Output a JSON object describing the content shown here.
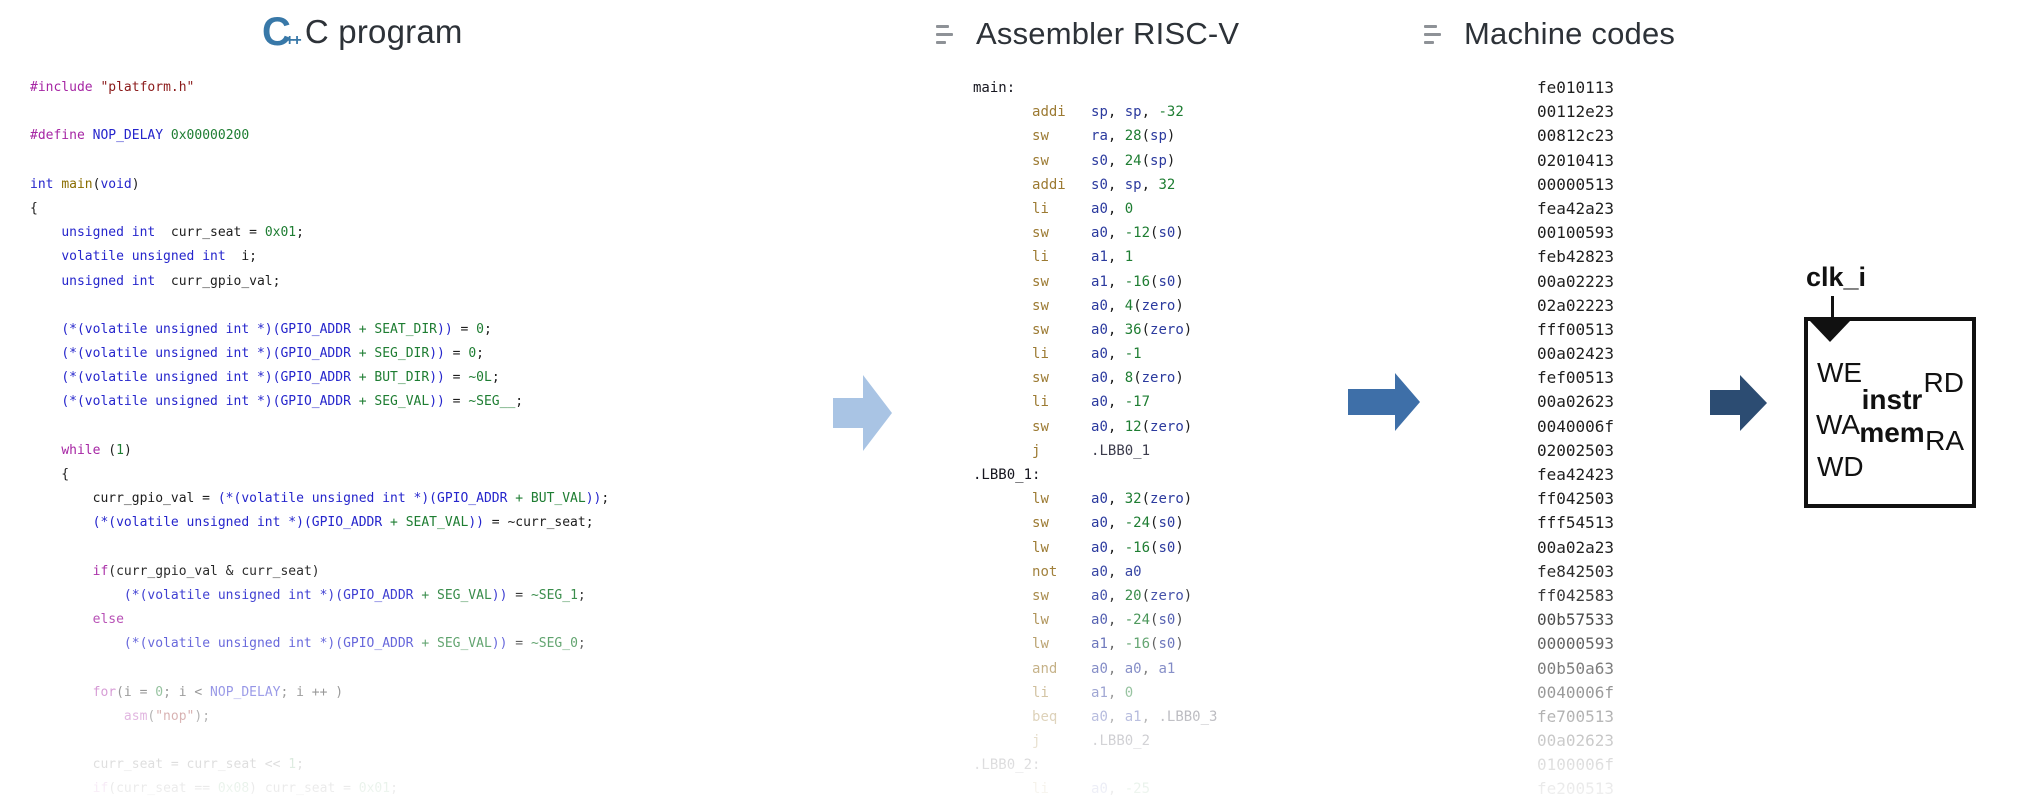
{
  "headers": {
    "c": {
      "title": "C program",
      "icon": "c-plus-plus-icon"
    },
    "asm": {
      "title": "Assembler RISC-V",
      "icon": "list-icon"
    },
    "mc": {
      "title": "Machine codes",
      "icon": "list-icon"
    }
  },
  "cpp_icon_text": {
    "letter": "C",
    "pluses": "++"
  },
  "c_code": {
    "lines": [
      [
        [
          "p",
          "#include "
        ],
        [
          "s",
          "\"platform.h\""
        ]
      ],
      [],
      [
        [
          "p",
          "#define "
        ],
        [
          "k",
          "NOP_DELAY"
        ],
        [
          "d",
          " "
        ],
        [
          "n",
          "0x00000200"
        ]
      ],
      [],
      [
        [
          "k",
          "int "
        ],
        [
          "f",
          "main"
        ],
        [
          "d",
          "("
        ],
        [
          "k",
          "void"
        ],
        [
          "d",
          ")"
        ]
      ],
      [
        [
          "d",
          "{"
        ]
      ],
      [
        [
          "d",
          "    "
        ],
        [
          "k",
          "unsigned int"
        ],
        [
          "d",
          "  curr_seat = "
        ],
        [
          "n",
          "0x01"
        ],
        [
          "d",
          ";"
        ]
      ],
      [
        [
          "d",
          "    "
        ],
        [
          "k",
          "volatile unsigned int"
        ],
        [
          "d",
          "  i;"
        ]
      ],
      [
        [
          "d",
          "    "
        ],
        [
          "k",
          "unsigned int"
        ],
        [
          "d",
          "  curr_gpio_val;"
        ]
      ],
      [],
      [
        [
          "d",
          "    "
        ],
        [
          "k",
          "(*(volatile unsigned int *)(GPIO_ADDR"
        ],
        [
          "n",
          " + SEAT_DIR"
        ],
        [
          "k",
          "))"
        ],
        [
          "d",
          " = "
        ],
        [
          "n",
          "0"
        ],
        [
          "d",
          ";"
        ]
      ],
      [
        [
          "d",
          "    "
        ],
        [
          "k",
          "(*(volatile unsigned int *)(GPIO_ADDR"
        ],
        [
          "n",
          " + SEG_DIR"
        ],
        [
          "k",
          "))"
        ],
        [
          "d",
          " = "
        ],
        [
          "n",
          "0"
        ],
        [
          "d",
          ";"
        ]
      ],
      [
        [
          "d",
          "    "
        ],
        [
          "k",
          "(*(volatile unsigned int *)(GPIO_ADDR"
        ],
        [
          "n",
          " + BUT_DIR"
        ],
        [
          "k",
          "))"
        ],
        [
          "d",
          " = "
        ],
        [
          "n",
          "~0L"
        ],
        [
          "d",
          ";"
        ]
      ],
      [
        [
          "d",
          "    "
        ],
        [
          "k",
          "(*(volatile unsigned int *)(GPIO_ADDR"
        ],
        [
          "n",
          " + SEG_VAL"
        ],
        [
          "k",
          "))"
        ],
        [
          "d",
          " = "
        ],
        [
          "n",
          "~SEG__"
        ],
        [
          "d",
          ";"
        ]
      ],
      [],
      [
        [
          "d",
          "    "
        ],
        [
          "p",
          "while"
        ],
        [
          "d",
          " ("
        ],
        [
          "n",
          "1"
        ],
        [
          "d",
          ")"
        ]
      ],
      [
        [
          "d",
          "    {"
        ]
      ],
      [
        [
          "d",
          "        curr_gpio_val = "
        ],
        [
          "k",
          "(*(volatile unsigned int *)(GPIO_ADDR"
        ],
        [
          "n",
          " + BUT_VAL"
        ],
        [
          "k",
          "))"
        ],
        [
          "d",
          ";"
        ]
      ],
      [
        [
          "d",
          "        "
        ],
        [
          "k",
          "(*(volatile unsigned int *)(GPIO_ADDR"
        ],
        [
          "n",
          " + SEAT_VAL"
        ],
        [
          "k",
          "))"
        ],
        [
          "d",
          " = ~curr_seat;"
        ]
      ],
      [],
      [
        [
          "d",
          "        "
        ],
        [
          "p",
          "if"
        ],
        [
          "d",
          "(curr_gpio_val & curr_seat)"
        ]
      ],
      [
        [
          "d",
          "            "
        ],
        [
          "k",
          "(*(volatile unsigned int *)(GPIO_ADDR"
        ],
        [
          "n",
          " + SEG_VAL"
        ],
        [
          "k",
          "))"
        ],
        [
          "d",
          " = "
        ],
        [
          "n",
          "~SEG_1"
        ],
        [
          "d",
          ";"
        ]
      ],
      [
        [
          "d",
          "        "
        ],
        [
          "p",
          "else"
        ]
      ],
      [
        [
          "d",
          "            "
        ],
        [
          "k",
          "(*(volatile unsigned int *)(GPIO_ADDR"
        ],
        [
          "n",
          " + SEG_VAL"
        ],
        [
          "k",
          "))"
        ],
        [
          "d",
          " = "
        ],
        [
          "n",
          "~SEG_0"
        ],
        [
          "d",
          ";"
        ]
      ],
      [],
      [
        [
          "d",
          "        "
        ],
        [
          "p",
          "for"
        ],
        [
          "d",
          "(i = "
        ],
        [
          "n",
          "0"
        ],
        [
          "d",
          "; i < "
        ],
        [
          "k",
          "NOP_DELAY"
        ],
        [
          "d",
          "; i ++ )"
        ]
      ],
      [
        [
          "d",
          "            "
        ],
        [
          "p",
          "asm"
        ],
        [
          "d",
          "("
        ],
        [
          "s",
          "\"nop\""
        ],
        [
          "d",
          ");"
        ]
      ],
      [],
      [
        [
          "d",
          "        curr_seat = curr_seat << "
        ],
        [
          "n",
          "1"
        ],
        [
          "d",
          ";"
        ]
      ],
      [
        [
          "d",
          "        "
        ],
        [
          "p",
          "if"
        ],
        [
          "d",
          "(curr_seat == "
        ],
        [
          "n",
          "0x08"
        ],
        [
          "d",
          ") curr_seat = "
        ],
        [
          "n",
          "0x01"
        ],
        [
          "d",
          ";"
        ]
      ]
    ]
  },
  "asm_code": {
    "lines": [
      [
        [
          "l",
          "main:"
        ]
      ],
      [
        [
          "d",
          "       "
        ],
        [
          "o",
          "addi"
        ],
        [
          "d",
          "   "
        ],
        [
          "r",
          "sp"
        ],
        [
          "d",
          ", "
        ],
        [
          "r",
          "sp"
        ],
        [
          "d",
          ", "
        ],
        [
          "n",
          "-32"
        ]
      ],
      [
        [
          "d",
          "       "
        ],
        [
          "o",
          "sw"
        ],
        [
          "d",
          "     "
        ],
        [
          "r",
          "ra"
        ],
        [
          "d",
          ", "
        ],
        [
          "n",
          "28"
        ],
        [
          "d",
          "("
        ],
        [
          "r",
          "sp"
        ],
        [
          "d",
          ")"
        ]
      ],
      [
        [
          "d",
          "       "
        ],
        [
          "o",
          "sw"
        ],
        [
          "d",
          "     "
        ],
        [
          "r",
          "s0"
        ],
        [
          "d",
          ", "
        ],
        [
          "n",
          "24"
        ],
        [
          "d",
          "("
        ],
        [
          "r",
          "sp"
        ],
        [
          "d",
          ")"
        ]
      ],
      [
        [
          "d",
          "       "
        ],
        [
          "o",
          "addi"
        ],
        [
          "d",
          "   "
        ],
        [
          "r",
          "s0"
        ],
        [
          "d",
          ", "
        ],
        [
          "r",
          "sp"
        ],
        [
          "d",
          ", "
        ],
        [
          "n",
          "32"
        ]
      ],
      [
        [
          "d",
          "       "
        ],
        [
          "o",
          "li"
        ],
        [
          "d",
          "     "
        ],
        [
          "r",
          "a0"
        ],
        [
          "d",
          ", "
        ],
        [
          "n",
          "0"
        ]
      ],
      [
        [
          "d",
          "       "
        ],
        [
          "o",
          "sw"
        ],
        [
          "d",
          "     "
        ],
        [
          "r",
          "a0"
        ],
        [
          "d",
          ", "
        ],
        [
          "n",
          "-12"
        ],
        [
          "d",
          "("
        ],
        [
          "r",
          "s0"
        ],
        [
          "d",
          ")"
        ]
      ],
      [
        [
          "d",
          "       "
        ],
        [
          "o",
          "li"
        ],
        [
          "d",
          "     "
        ],
        [
          "r",
          "a1"
        ],
        [
          "d",
          ", "
        ],
        [
          "n",
          "1"
        ]
      ],
      [
        [
          "d",
          "       "
        ],
        [
          "o",
          "sw"
        ],
        [
          "d",
          "     "
        ],
        [
          "r",
          "a1"
        ],
        [
          "d",
          ", "
        ],
        [
          "n",
          "-16"
        ],
        [
          "d",
          "("
        ],
        [
          "r",
          "s0"
        ],
        [
          "d",
          ")"
        ]
      ],
      [
        [
          "d",
          "       "
        ],
        [
          "o",
          "sw"
        ],
        [
          "d",
          "     "
        ],
        [
          "r",
          "a0"
        ],
        [
          "d",
          ", "
        ],
        [
          "n",
          "4"
        ],
        [
          "d",
          "("
        ],
        [
          "r",
          "zero"
        ],
        [
          "d",
          ")"
        ]
      ],
      [
        [
          "d",
          "       "
        ],
        [
          "o",
          "sw"
        ],
        [
          "d",
          "     "
        ],
        [
          "r",
          "a0"
        ],
        [
          "d",
          ", "
        ],
        [
          "n",
          "36"
        ],
        [
          "d",
          "("
        ],
        [
          "r",
          "zero"
        ],
        [
          "d",
          ")"
        ]
      ],
      [
        [
          "d",
          "       "
        ],
        [
          "o",
          "li"
        ],
        [
          "d",
          "     "
        ],
        [
          "r",
          "a0"
        ],
        [
          "d",
          ", "
        ],
        [
          "n",
          "-1"
        ]
      ],
      [
        [
          "d",
          "       "
        ],
        [
          "o",
          "sw"
        ],
        [
          "d",
          "     "
        ],
        [
          "r",
          "a0"
        ],
        [
          "d",
          ", "
        ],
        [
          "n",
          "8"
        ],
        [
          "d",
          "("
        ],
        [
          "r",
          "zero"
        ],
        [
          "d",
          ")"
        ]
      ],
      [
        [
          "d",
          "       "
        ],
        [
          "o",
          "li"
        ],
        [
          "d",
          "     "
        ],
        [
          "r",
          "a0"
        ],
        [
          "d",
          ", "
        ],
        [
          "n",
          "-17"
        ]
      ],
      [
        [
          "d",
          "       "
        ],
        [
          "o",
          "sw"
        ],
        [
          "d",
          "     "
        ],
        [
          "r",
          "a0"
        ],
        [
          "d",
          ", "
        ],
        [
          "n",
          "12"
        ],
        [
          "d",
          "("
        ],
        [
          "r",
          "zero"
        ],
        [
          "d",
          ")"
        ]
      ],
      [
        [
          "d",
          "       "
        ],
        [
          "o",
          "j"
        ],
        [
          "d",
          "      "
        ],
        [
          "t",
          ".LBB0_1"
        ]
      ],
      [
        [
          "l",
          ".LBB0_1:"
        ]
      ],
      [
        [
          "d",
          "       "
        ],
        [
          "o",
          "lw"
        ],
        [
          "d",
          "     "
        ],
        [
          "r",
          "a0"
        ],
        [
          "d",
          ", "
        ],
        [
          "n",
          "32"
        ],
        [
          "d",
          "("
        ],
        [
          "r",
          "zero"
        ],
        [
          "d",
          ")"
        ]
      ],
      [
        [
          "d",
          "       "
        ],
        [
          "o",
          "sw"
        ],
        [
          "d",
          "     "
        ],
        [
          "r",
          "a0"
        ],
        [
          "d",
          ", "
        ],
        [
          "n",
          "-24"
        ],
        [
          "d",
          "("
        ],
        [
          "r",
          "s0"
        ],
        [
          "d",
          ")"
        ]
      ],
      [
        [
          "d",
          "       "
        ],
        [
          "o",
          "lw"
        ],
        [
          "d",
          "     "
        ],
        [
          "r",
          "a0"
        ],
        [
          "d",
          ", "
        ],
        [
          "n",
          "-16"
        ],
        [
          "d",
          "("
        ],
        [
          "r",
          "s0"
        ],
        [
          "d",
          ")"
        ]
      ],
      [
        [
          "d",
          "       "
        ],
        [
          "o",
          "not"
        ],
        [
          "d",
          "    "
        ],
        [
          "r",
          "a0"
        ],
        [
          "d",
          ", "
        ],
        [
          "r",
          "a0"
        ]
      ],
      [
        [
          "d",
          "       "
        ],
        [
          "o",
          "sw"
        ],
        [
          "d",
          "     "
        ],
        [
          "r",
          "a0"
        ],
        [
          "d",
          ", "
        ],
        [
          "n",
          "20"
        ],
        [
          "d",
          "("
        ],
        [
          "r",
          "zero"
        ],
        [
          "d",
          ")"
        ]
      ],
      [
        [
          "d",
          "       "
        ],
        [
          "o",
          "lw"
        ],
        [
          "d",
          "     "
        ],
        [
          "r",
          "a0"
        ],
        [
          "d",
          ", "
        ],
        [
          "n",
          "-24"
        ],
        [
          "d",
          "("
        ],
        [
          "r",
          "s0"
        ],
        [
          "d",
          ")"
        ]
      ],
      [
        [
          "d",
          "       "
        ],
        [
          "o",
          "lw"
        ],
        [
          "d",
          "     "
        ],
        [
          "r",
          "a1"
        ],
        [
          "d",
          ", "
        ],
        [
          "n",
          "-16"
        ],
        [
          "d",
          "("
        ],
        [
          "r",
          "s0"
        ],
        [
          "d",
          ")"
        ]
      ],
      [
        [
          "d",
          "       "
        ],
        [
          "o",
          "and"
        ],
        [
          "d",
          "    "
        ],
        [
          "r",
          "a0"
        ],
        [
          "d",
          ", "
        ],
        [
          "r",
          "a0"
        ],
        [
          "d",
          ", "
        ],
        [
          "r",
          "a1"
        ]
      ],
      [
        [
          "d",
          "       "
        ],
        [
          "o",
          "li"
        ],
        [
          "d",
          "     "
        ],
        [
          "r",
          "a1"
        ],
        [
          "d",
          ", "
        ],
        [
          "n",
          "0"
        ]
      ],
      [
        [
          "d",
          "       "
        ],
        [
          "o",
          "beq"
        ],
        [
          "d",
          "    "
        ],
        [
          "r",
          "a0"
        ],
        [
          "d",
          ", "
        ],
        [
          "r",
          "a1"
        ],
        [
          "d",
          ", "
        ],
        [
          "t",
          ".LBB0_3"
        ]
      ],
      [
        [
          "d",
          "       "
        ],
        [
          "o",
          "j"
        ],
        [
          "d",
          "      "
        ],
        [
          "t",
          ".LBB0_2"
        ]
      ],
      [
        [
          "l",
          ".LBB0_2:"
        ]
      ],
      [
        [
          "d",
          "       "
        ],
        [
          "o",
          "li"
        ],
        [
          "d",
          "     "
        ],
        [
          "r",
          "a0"
        ],
        [
          "d",
          ", "
        ],
        [
          "n",
          "-25"
        ]
      ]
    ]
  },
  "machine_codes": [
    "fe010113",
    "00112e23",
    "00812c23",
    "02010413",
    "00000513",
    "fea42a23",
    "00100593",
    "feb42823",
    "00a02223",
    "02a02223",
    "fff00513",
    "00a02423",
    "fef00513",
    "00a02623",
    "0040006f",
    "02002503",
    "fea42423",
    "ff042503",
    "fff54513",
    "00a02a23",
    "fe842503",
    "ff042583",
    "00b57533",
    "00000593",
    "00b50a63",
    "0040006f",
    "fe700513",
    "00a02623",
    "0100006f",
    "fe200513"
  ],
  "diagram": {
    "clock_label": "clk_i",
    "block_label_line1": "instr",
    "block_label_line2": "mem",
    "left_ports": [
      "WE",
      "WA",
      "WD"
    ],
    "right_ports": [
      "RD",
      "RA"
    ]
  },
  "arrows": {
    "description": "three right-pointing block arrows between columns",
    "colors": [
      "#a9c4e4",
      "#3e6fa8",
      "#2c4c72"
    ]
  },
  "colors": {
    "icon_blue": "#3878a8",
    "header_text": "#2d3238",
    "c_keyword": "#2525cc",
    "c_preproc": "#a626a4",
    "c_string": "#8b1a1a",
    "c_constant": "#1e7d32",
    "c_function": "#8a6d00",
    "asm_mnemonic": "#9c7a32",
    "asm_register": "#2b3a9e",
    "machine_code_text": "#1f1f1f"
  }
}
